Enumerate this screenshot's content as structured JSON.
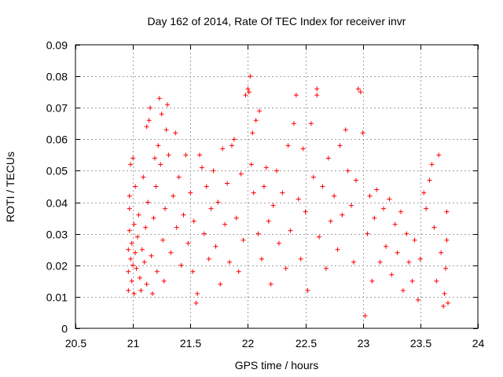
{
  "colors": {
    "series": "#ff0000",
    "grid": "#a0a0a0",
    "axis": "#000000"
  },
  "chart_data": {
    "type": "scatter",
    "title": "Day 162 of 2014, Rate Of TEC Index for receiver invr",
    "xlabel": "GPS time / hours",
    "ylabel": "ROTI / TECUs",
    "xlim": [
      20.5,
      24
    ],
    "ylim": [
      0,
      0.09
    ],
    "grid": true,
    "marker": "+",
    "x_ticks": [
      20.5,
      21,
      21.5,
      22,
      22.5,
      23,
      23.5,
      24
    ],
    "x_tick_labels": [
      "20.5",
      "21",
      "21.5",
      "22",
      "22.5",
      "23",
      "23.5",
      "24"
    ],
    "y_ticks": [
      0,
      0.01,
      0.02,
      0.03,
      0.04,
      0.05,
      0.06,
      0.07,
      0.08,
      0.09
    ],
    "y_tick_labels": [
      "0",
      "0.01",
      "0.02",
      "0.03",
      "0.04",
      "0.05",
      "0.06",
      "0.07",
      "0.08",
      "0.09"
    ],
    "series": [
      {
        "name": "ROTI",
        "points": [
          [
            20.96,
            0.012
          ],
          [
            20.96,
            0.018
          ],
          [
            20.96,
            0.025
          ],
          [
            20.97,
            0.031
          ],
          [
            20.97,
            0.038
          ],
          [
            20.97,
            0.042
          ],
          [
            20.98,
            0.052
          ],
          [
            20.98,
            0.022
          ],
          [
            20.99,
            0.015
          ],
          [
            20.99,
            0.027
          ],
          [
            21.0,
            0.054
          ],
          [
            21.0,
            0.02
          ],
          [
            21.01,
            0.033
          ],
          [
            21.01,
            0.011
          ],
          [
            21.02,
            0.045
          ],
          [
            21.02,
            0.024
          ],
          [
            21.03,
            0.019
          ],
          [
            21.04,
            0.029
          ],
          [
            21.05,
            0.036
          ],
          [
            21.06,
            0.016
          ],
          [
            21.07,
            0.012
          ],
          [
            21.08,
            0.025
          ],
          [
            21.09,
            0.048
          ],
          [
            21.1,
            0.021
          ],
          [
            21.11,
            0.032
          ],
          [
            21.12,
            0.064
          ],
          [
            21.12,
            0.014
          ],
          [
            21.13,
            0.04
          ],
          [
            21.14,
            0.066
          ],
          [
            21.15,
            0.07
          ],
          [
            21.16,
            0.023
          ],
          [
            21.17,
            0.011
          ],
          [
            21.18,
            0.035
          ],
          [
            21.19,
            0.054
          ],
          [
            21.2,
            0.045
          ],
          [
            21.21,
            0.018
          ],
          [
            21.22,
            0.058
          ],
          [
            21.23,
            0.073
          ],
          [
            21.24,
            0.052
          ],
          [
            21.25,
            0.068
          ],
          [
            21.26,
            0.028
          ],
          [
            21.27,
            0.015
          ],
          [
            21.28,
            0.038
          ],
          [
            21.29,
            0.063
          ],
          [
            21.3,
            0.071
          ],
          [
            21.31,
            0.055
          ],
          [
            21.33,
            0.024
          ],
          [
            21.35,
            0.042
          ],
          [
            21.37,
            0.062
          ],
          [
            21.38,
            0.032
          ],
          [
            21.4,
            0.048
          ],
          [
            21.42,
            0.02
          ],
          [
            21.44,
            0.036
          ],
          [
            21.46,
            0.055
          ],
          [
            21.48,
            0.027
          ],
          [
            21.5,
            0.043
          ],
          [
            21.52,
            0.018
          ],
          [
            21.53,
            0.034
          ],
          [
            21.55,
            0.008
          ],
          [
            21.56,
            0.011
          ],
          [
            21.58,
            0.055
          ],
          [
            21.6,
            0.051
          ],
          [
            21.62,
            0.03
          ],
          [
            21.64,
            0.045
          ],
          [
            21.66,
            0.022
          ],
          [
            21.68,
            0.038
          ],
          [
            21.7,
            0.05
          ],
          [
            21.72,
            0.026
          ],
          [
            21.74,
            0.04
          ],
          [
            21.76,
            0.014
          ],
          [
            21.78,
            0.057
          ],
          [
            21.8,
            0.033
          ],
          [
            21.82,
            0.046
          ],
          [
            21.84,
            0.021
          ],
          [
            21.86,
            0.058
          ],
          [
            21.88,
            0.06
          ],
          [
            21.9,
            0.035
          ],
          [
            21.92,
            0.018
          ],
          [
            21.94,
            0.049
          ],
          [
            21.96,
            0.028
          ],
          [
            21.98,
            0.074
          ],
          [
            22.0,
            0.076
          ],
          [
            22.01,
            0.075
          ],
          [
            22.02,
            0.08
          ],
          [
            22.03,
            0.052
          ],
          [
            22.04,
            0.062
          ],
          [
            22.05,
            0.043
          ],
          [
            22.07,
            0.066
          ],
          [
            22.09,
            0.03
          ],
          [
            22.1,
            0.069
          ],
          [
            22.12,
            0.022
          ],
          [
            22.14,
            0.045
          ],
          [
            22.16,
            0.051
          ],
          [
            22.18,
            0.034
          ],
          [
            22.2,
            0.014
          ],
          [
            22.22,
            0.039
          ],
          [
            22.25,
            0.05
          ],
          [
            22.27,
            0.027
          ],
          [
            22.3,
            0.043
          ],
          [
            22.33,
            0.019
          ],
          [
            22.35,
            0.058
          ],
          [
            22.37,
            0.031
          ],
          [
            22.4,
            0.065
          ],
          [
            22.42,
            0.074
          ],
          [
            22.44,
            0.041
          ],
          [
            22.46,
            0.022
          ],
          [
            22.48,
            0.057
          ],
          [
            22.5,
            0.037
          ],
          [
            22.52,
            0.012
          ],
          [
            22.55,
            0.065
          ],
          [
            22.57,
            0.048
          ],
          [
            22.6,
            0.076
          ],
          [
            22.6,
            0.074
          ],
          [
            22.62,
            0.029
          ],
          [
            22.65,
            0.045
          ],
          [
            22.68,
            0.019
          ],
          [
            22.7,
            0.054
          ],
          [
            22.72,
            0.034
          ],
          [
            22.75,
            0.042
          ],
          [
            22.78,
            0.025
          ],
          [
            22.8,
            0.058
          ],
          [
            22.82,
            0.036
          ],
          [
            22.85,
            0.063
          ],
          [
            22.87,
            0.05
          ],
          [
            22.9,
            0.039
          ],
          [
            22.92,
            0.021
          ],
          [
            22.94,
            0.047
          ],
          [
            22.96,
            0.076
          ],
          [
            22.98,
            0.075
          ],
          [
            23.0,
            0.062
          ],
          [
            23.02,
            0.004
          ],
          [
            23.04,
            0.03
          ],
          [
            23.06,
            0.042
          ],
          [
            23.08,
            0.015
          ],
          [
            23.1,
            0.035
          ],
          [
            23.12,
            0.044
          ],
          [
            23.15,
            0.021
          ],
          [
            23.18,
            0.038
          ],
          [
            23.2,
            0.026
          ],
          [
            23.23,
            0.041
          ],
          [
            23.25,
            0.017
          ],
          [
            23.28,
            0.033
          ],
          [
            23.3,
            0.024
          ],
          [
            23.33,
            0.037
          ],
          [
            23.35,
            0.012
          ],
          [
            23.38,
            0.03
          ],
          [
            23.4,
            0.021
          ],
          [
            23.43,
            0.015
          ],
          [
            23.45,
            0.028
          ],
          [
            23.48,
            0.009
          ],
          [
            23.5,
            0.022
          ],
          [
            23.53,
            0.043
          ],
          [
            23.55,
            0.038
          ],
          [
            23.58,
            0.047
          ],
          [
            23.6,
            0.052
          ],
          [
            23.62,
            0.032
          ],
          [
            23.64,
            0.015
          ],
          [
            23.66,
            0.055
          ],
          [
            23.68,
            0.024
          ],
          [
            23.7,
            0.007
          ],
          [
            23.71,
            0.011
          ],
          [
            23.72,
            0.019
          ],
          [
            23.73,
            0.028
          ],
          [
            23.73,
            0.037
          ],
          [
            23.74,
            0.008
          ]
        ]
      }
    ]
  }
}
